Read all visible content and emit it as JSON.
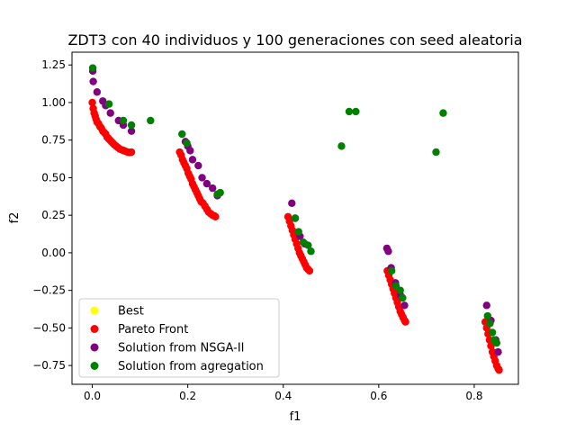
{
  "chart_data": {
    "type": "scatter",
    "title": "ZDT3 con 40 individuos y 100 generaciones con seed aleatoria",
    "xlabel": "f1",
    "ylabel": "f2",
    "xlim": [
      -0.0425,
      0.8925
    ],
    "ylim": [
      -0.875,
      1.335
    ],
    "xticks": [
      0.0,
      0.2,
      0.4,
      0.6,
      0.8
    ],
    "xtick_labels": [
      "0.0",
      "0.2",
      "0.4",
      "0.6",
      "0.8"
    ],
    "yticks": [
      -0.75,
      -0.5,
      -0.25,
      0.0,
      0.25,
      0.5,
      0.75,
      1.0,
      1.25
    ],
    "ytick_labels": [
      "−0.75",
      "−0.50",
      "−0.25",
      "0.00",
      "0.25",
      "0.50",
      "0.75",
      "1.00",
      "1.25"
    ],
    "grid": false,
    "legend_position": "lower-left",
    "series": [
      {
        "name": "Best",
        "color": "#ffff00",
        "points": []
      },
      {
        "name": "Pareto Front",
        "color": "#ff0000",
        "points": [
          [
            0.0,
            1.0
          ],
          [
            0.002,
            0.96
          ],
          [
            0.004,
            0.93
          ],
          [
            0.006,
            0.91
          ],
          [
            0.008,
            0.89
          ],
          [
            0.01,
            0.87
          ],
          [
            0.013,
            0.86
          ],
          [
            0.016,
            0.84
          ],
          [
            0.019,
            0.83
          ],
          [
            0.022,
            0.81
          ],
          [
            0.025,
            0.8
          ],
          [
            0.028,
            0.79
          ],
          [
            0.031,
            0.77
          ],
          [
            0.034,
            0.76
          ],
          [
            0.037,
            0.75
          ],
          [
            0.04,
            0.74
          ],
          [
            0.043,
            0.73
          ],
          [
            0.046,
            0.72
          ],
          [
            0.05,
            0.71
          ],
          [
            0.054,
            0.7
          ],
          [
            0.058,
            0.69
          ],
          [
            0.062,
            0.685
          ],
          [
            0.066,
            0.68
          ],
          [
            0.07,
            0.675
          ],
          [
            0.074,
            0.67
          ],
          [
            0.078,
            0.668
          ],
          [
            0.082,
            0.67
          ],
          [
            0.183,
            0.67
          ],
          [
            0.186,
            0.65
          ],
          [
            0.189,
            0.62
          ],
          [
            0.192,
            0.6
          ],
          [
            0.195,
            0.58
          ],
          [
            0.198,
            0.56
          ],
          [
            0.201,
            0.53
          ],
          [
            0.204,
            0.51
          ],
          [
            0.207,
            0.49
          ],
          [
            0.21,
            0.46
          ],
          [
            0.213,
            0.44
          ],
          [
            0.216,
            0.42
          ],
          [
            0.219,
            0.4
          ],
          [
            0.222,
            0.38
          ],
          [
            0.225,
            0.36
          ],
          [
            0.228,
            0.34
          ],
          [
            0.232,
            0.33
          ],
          [
            0.236,
            0.31
          ],
          [
            0.24,
            0.29
          ],
          [
            0.244,
            0.27
          ],
          [
            0.248,
            0.26
          ],
          [
            0.252,
            0.25
          ],
          [
            0.256,
            0.245
          ],
          [
            0.258,
            0.24
          ],
          [
            0.41,
            0.24
          ],
          [
            0.413,
            0.21
          ],
          [
            0.416,
            0.18
          ],
          [
            0.419,
            0.15
          ],
          [
            0.422,
            0.12
          ],
          [
            0.425,
            0.09
          ],
          [
            0.428,
            0.06
          ],
          [
            0.431,
            0.03
          ],
          [
            0.434,
            0.0
          ],
          [
            0.437,
            -0.02
          ],
          [
            0.44,
            -0.04
          ],
          [
            0.443,
            -0.06
          ],
          [
            0.446,
            -0.08
          ],
          [
            0.449,
            -0.1
          ],
          [
            0.452,
            -0.11
          ],
          [
            0.455,
            -0.12
          ],
          [
            0.618,
            -0.12
          ],
          [
            0.621,
            -0.15
          ],
          [
            0.624,
            -0.18
          ],
          [
            0.627,
            -0.21
          ],
          [
            0.63,
            -0.24
          ],
          [
            0.633,
            -0.27
          ],
          [
            0.636,
            -0.3
          ],
          [
            0.639,
            -0.33
          ],
          [
            0.642,
            -0.36
          ],
          [
            0.645,
            -0.39
          ],
          [
            0.648,
            -0.41
          ],
          [
            0.651,
            -0.43
          ],
          [
            0.654,
            -0.45
          ],
          [
            0.656,
            -0.46
          ],
          [
            0.823,
            -0.46
          ],
          [
            0.826,
            -0.5
          ],
          [
            0.829,
            -0.54
          ],
          [
            0.832,
            -0.58
          ],
          [
            0.835,
            -0.62
          ],
          [
            0.838,
            -0.66
          ],
          [
            0.841,
            -0.69
          ],
          [
            0.844,
            -0.72
          ],
          [
            0.847,
            -0.75
          ],
          [
            0.85,
            -0.77
          ],
          [
            0.852,
            -0.78
          ]
        ]
      },
      {
        "name": "Solution from NSGA-II",
        "color": "#800080",
        "points": [
          [
            0.001,
            1.21
          ],
          [
            0.002,
            1.14
          ],
          [
            0.01,
            1.07
          ],
          [
            0.022,
            1.01
          ],
          [
            0.028,
            0.98
          ],
          [
            0.038,
            0.93
          ],
          [
            0.055,
            0.88
          ],
          [
            0.065,
            0.85
          ],
          [
            0.082,
            0.81
          ],
          [
            0.195,
            0.74
          ],
          [
            0.2,
            0.71
          ],
          [
            0.205,
            0.68
          ],
          [
            0.21,
            0.62
          ],
          [
            0.222,
            0.58
          ],
          [
            0.23,
            0.5
          ],
          [
            0.24,
            0.46
          ],
          [
            0.252,
            0.43
          ],
          [
            0.262,
            0.38
          ],
          [
            0.418,
            0.33
          ],
          [
            0.425,
            0.23
          ],
          [
            0.435,
            0.11
          ],
          [
            0.445,
            0.06
          ],
          [
            0.617,
            0.03
          ],
          [
            0.62,
            0.01
          ],
          [
            0.626,
            -0.1
          ],
          [
            0.635,
            -0.2
          ],
          [
            0.645,
            -0.28
          ],
          [
            0.654,
            -0.35
          ],
          [
            0.826,
            -0.35
          ],
          [
            0.835,
            -0.45
          ],
          [
            0.845,
            -0.58
          ],
          [
            0.85,
            -0.66
          ]
        ]
      },
      {
        "name": "Solution from agregation",
        "color": "#008000",
        "points": [
          [
            0.001,
            1.23
          ],
          [
            0.035,
            0.99
          ],
          [
            0.065,
            0.88
          ],
          [
            0.082,
            0.85
          ],
          [
            0.122,
            0.88
          ],
          [
            0.188,
            0.79
          ],
          [
            0.198,
            0.73
          ],
          [
            0.262,
            0.39
          ],
          [
            0.268,
            0.4
          ],
          [
            0.425,
            0.23
          ],
          [
            0.432,
            0.14
          ],
          [
            0.442,
            0.07
          ],
          [
            0.452,
            0.05
          ],
          [
            0.458,
            0.01
          ],
          [
            0.522,
            0.71
          ],
          [
            0.538,
            0.94
          ],
          [
            0.552,
            0.94
          ],
          [
            0.72,
            0.67
          ],
          [
            0.735,
            0.93
          ],
          [
            0.627,
            -0.12
          ],
          [
            0.636,
            -0.22
          ],
          [
            0.645,
            -0.25
          ],
          [
            0.65,
            -0.3
          ],
          [
            0.828,
            -0.42
          ],
          [
            0.833,
            -0.47
          ],
          [
            0.838,
            -0.53
          ],
          [
            0.842,
            -0.58
          ],
          [
            0.847,
            -0.6
          ]
        ]
      }
    ]
  }
}
